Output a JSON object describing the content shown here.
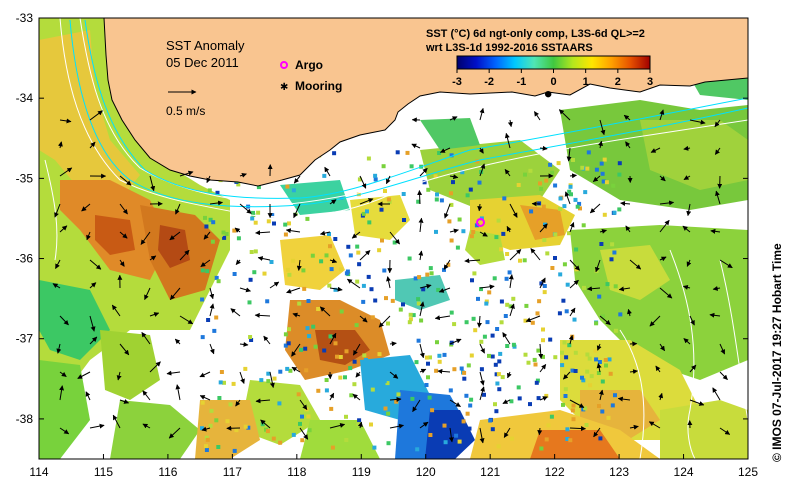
{
  "title": "SST Anomaly",
  "date": "05 Dec 2011",
  "velocity_scale_label": "0.5 m/s",
  "legend": {
    "argo_label": "Argo",
    "mooring_label": "Mooring",
    "argo_color": "#ff00ff",
    "mooring_color": "#000000"
  },
  "product_line1": "SST (°C) 6d ngt-only comp, L3S-6d QL>=2",
  "product_line2": "wrt L3S-1d 1992-2016 SSTAARS",
  "credit": "© IMOS 07-Jul-2017 19:27 Hobart Time",
  "colors": {
    "land": "#f9c590",
    "ocean_nodata": "#ffffff",
    "contour": "#ffffff",
    "current_line": "#00e0ff"
  },
  "colorbar": {
    "min": -3,
    "max": 3,
    "tick_labels": [
      "-3",
      "-2",
      "-1",
      "0",
      "1",
      "2",
      "3"
    ],
    "stops": [
      "#00006e",
      "#0010c8",
      "#0064ff",
      "#00c8ff",
      "#50e6b4",
      "#40c840",
      "#b4e61e",
      "#ffe600",
      "#ffa000",
      "#e65000",
      "#a00000"
    ]
  },
  "axes": {
    "lon_range": [
      114,
      125
    ],
    "lat_range": [
      -38.5,
      -33
    ],
    "x_ticks": [
      "114",
      "115",
      "116",
      "117",
      "118",
      "119",
      "120",
      "121",
      "122",
      "123",
      "124",
      "125"
    ],
    "y_ticks": [
      "-33",
      "-34",
      "-35",
      "-36",
      "-37",
      "-38"
    ]
  },
  "markers": {
    "argo": {
      "lon": 120.85,
      "lat": -35.55
    },
    "mooring": {
      "lon": 121.9,
      "lat": -33.95
    }
  }
}
